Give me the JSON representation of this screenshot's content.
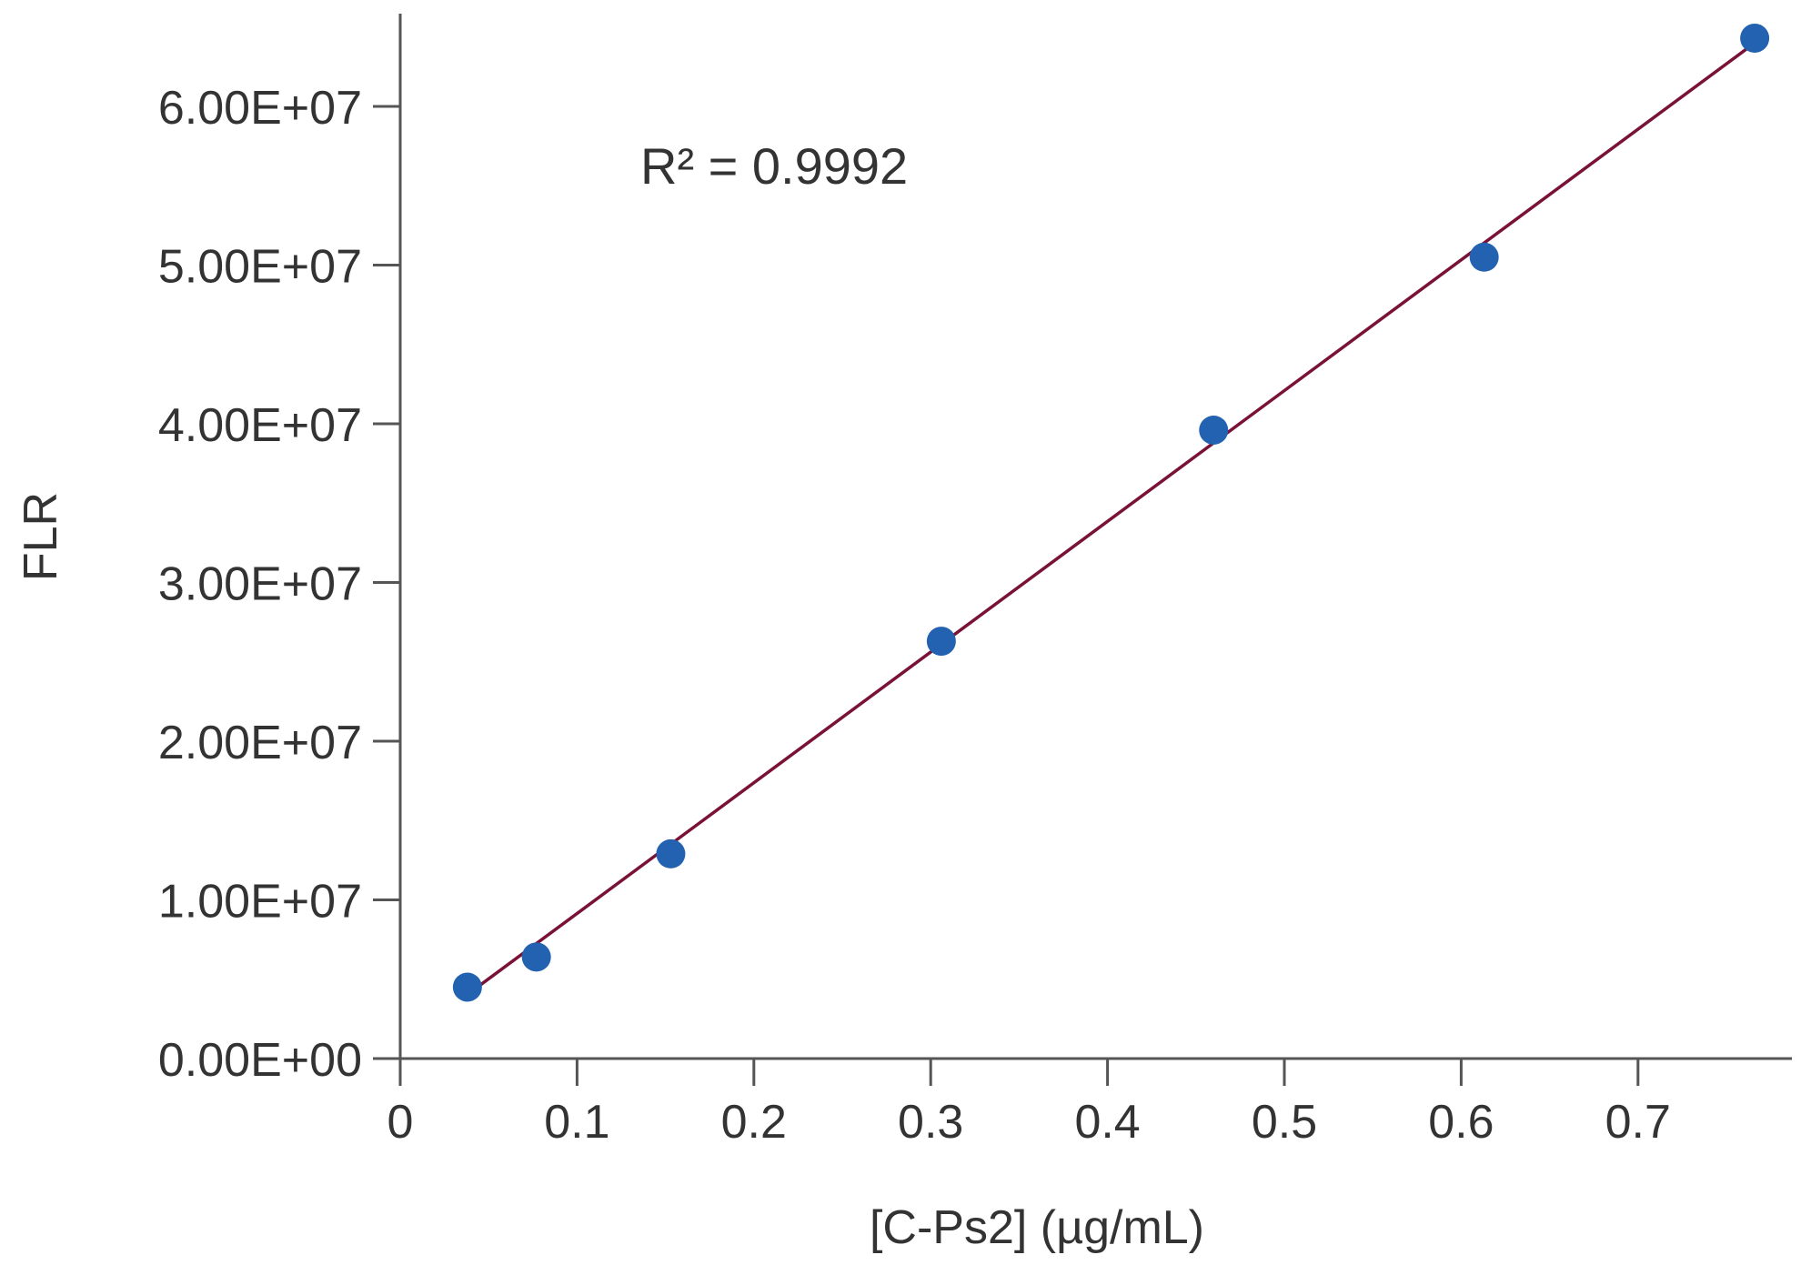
{
  "chart_data": {
    "type": "scatter",
    "title": "",
    "xlabel": "[C-Ps2] (µg/mL)",
    "ylabel": "FLR",
    "xlim": [
      0,
      0.78
    ],
    "ylim": [
      0,
      66000000
    ],
    "x_ticks": [
      0,
      0.1,
      0.2,
      0.3,
      0.4,
      0.5,
      0.6,
      0.7
    ],
    "x_tick_labels": [
      "0",
      "0.1",
      "0.2",
      "0.3",
      "0.4",
      "0.5",
      "0.6",
      "0.7"
    ],
    "y_ticks": [
      0,
      10000000,
      20000000,
      30000000,
      40000000,
      50000000,
      60000000
    ],
    "y_tick_labels": [
      "0.00E+00",
      "1.00E+07",
      "2.00E+07",
      "3.00E+07",
      "4.00E+07",
      "5.00E+07",
      "6.00E+07"
    ],
    "grid": false,
    "series": [
      {
        "name": "FLR",
        "x": [
          0.038,
          0.077,
          0.153,
          0.306,
          0.46,
          0.613,
          0.766
        ],
        "y": [
          4500000,
          6400000,
          12900000,
          26300000,
          39600000,
          50500000,
          64300000
        ],
        "color": "#2362b1"
      }
    ],
    "trendline": {
      "x": [
        0.04,
        0.766
      ],
      "y": [
        4200000,
        64000000
      ],
      "color": "#7a1238"
    },
    "annotation": "R² = 0.9992"
  }
}
